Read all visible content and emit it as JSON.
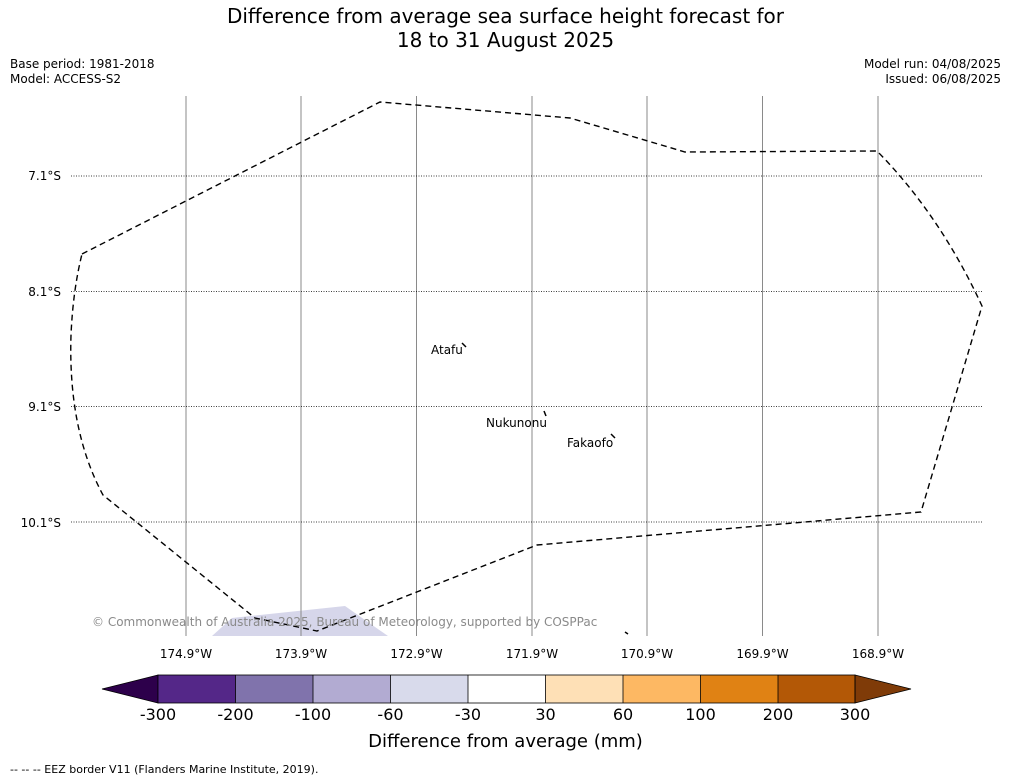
{
  "title": {
    "line1": "Difference from average sea surface height forecast for",
    "line2": "18 to 31 August 2025"
  },
  "meta": {
    "base_period": "Base period: 1981-2018",
    "model": "Model: ACCESS-S2",
    "model_run": "Model run: 04/08/2025",
    "issued": "Issued: 06/08/2025"
  },
  "map": {
    "longitudes": [
      "174.9°W",
      "173.9°W",
      "172.9°W",
      "171.9°W",
      "170.9°W",
      "169.9°W",
      "168.9°W"
    ],
    "latitudes": [
      "7.1°S",
      "8.1°S",
      "9.1°S",
      "10.1°S"
    ],
    "places": [
      "Atafu",
      "Nukunonu",
      "Fakaofo"
    ],
    "copyright": "© Commonwealth of Australia 2025, Bureau of Meteorology, supported by COSPPac",
    "anomaly_patch_color": "#d6d6ea",
    "eez_border_color": "#000000"
  },
  "colorbar": {
    "colors": [
      "#2d004b",
      "#542788",
      "#8073ac",
      "#b2abd2",
      "#d8daeb",
      "#ffffff",
      "#fee0b6",
      "#fdb863",
      "#e08214",
      "#b35806",
      "#7f3b08"
    ],
    "ticks": [
      "-300",
      "-200",
      "-100",
      "-60",
      "-30",
      "30",
      "60",
      "100",
      "200",
      "300"
    ],
    "label": "Difference from average (mm)"
  },
  "footer": {
    "legend": "--  --  -- EEZ border V11 (Flanders Marine Institute, 2019)."
  }
}
